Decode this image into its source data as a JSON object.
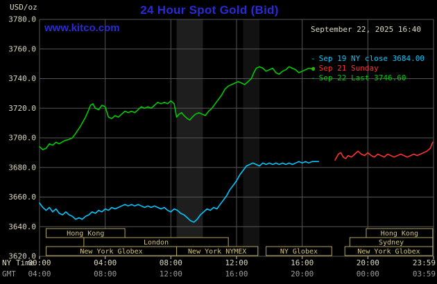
{
  "header": {
    "y_unit": "USD/oz",
    "title": "24 Hour Spot Gold (Bid)",
    "timestamp": "September 22, 2025 16:40",
    "website": "www.kitco.com"
  },
  "colors": {
    "background": "#000000",
    "title": "#2a2ad8",
    "text": "#ded9c2",
    "dim_text": "#9c9c9c",
    "grid": "#565656",
    "session_border": "#b3a55e",
    "session_text": "#d6c67c",
    "tick": "#cfcfcf"
  },
  "legend": {
    "items": [
      {
        "label": "Sep 19 NY close 3684.00",
        "color": "#00c8ff"
      },
      {
        "label": "Sep 21 Sunday",
        "color": "#ff3232"
      },
      {
        "label": "Sep 22 Last 3746.60",
        "color": "#00cc00"
      }
    ]
  },
  "axis": {
    "ny_time_label": "NY Time",
    "gmt_label": "GMT",
    "ny_ticks": [
      "00:00",
      "04:00",
      "08:00",
      "12:00",
      "16:00",
      "20:00",
      "23:59"
    ],
    "gmt_ticks": [
      "04:00",
      "08:00",
      "12:00",
      "16:00",
      "20:00",
      "00:00",
      "03:59"
    ]
  },
  "chart_data": {
    "type": "line",
    "title": "24 Hour Spot Gold (Bid)",
    "ylabel": "USD/oz",
    "ylim": [
      3620,
      3780
    ],
    "y_ticks": [
      3780,
      3760,
      3740,
      3720,
      3700,
      3680,
      3660,
      3640,
      3620
    ],
    "xlim_hours": [
      0,
      24
    ],
    "x_tick_hours": [
      0,
      4,
      8,
      12,
      16,
      20,
      24
    ],
    "grid": true,
    "legend_position": "top-right",
    "bands": [
      {
        "from": 8.35,
        "to": 9.95,
        "color": "#1e1e1e"
      },
      {
        "from": 12.4,
        "to": 13.4,
        "color": "#121212"
      }
    ],
    "sessions": [
      {
        "label": "Hong Kong",
        "row": 0,
        "from": 0.4,
        "to": 5.2
      },
      {
        "label": "Hong Kong",
        "row": 0,
        "from": 19.9,
        "to": 23.95
      },
      {
        "label": "London",
        "row": 1,
        "from": 2.7,
        "to": 11.5
      },
      {
        "label": "Sydney",
        "row": 1,
        "from": 18.9,
        "to": 23.95
      },
      {
        "label": "New York Globex",
        "row": 2,
        "from": 0.4,
        "to": 8.35
      },
      {
        "label": "New York NYMEX",
        "row": 2,
        "from": 8.35,
        "to": 13.3
      },
      {
        "label": "NY Globex",
        "row": 2,
        "from": 13.8,
        "to": 17.8
      },
      {
        "label": "New York Globex",
        "row": 2,
        "from": 18.6,
        "to": 23.95
      }
    ],
    "series": [
      {
        "name": "Sep 19 NY close",
        "color": "#00c8ff",
        "points": [
          [
            0,
            3656
          ],
          [
            0.2,
            3653
          ],
          [
            0.4,
            3651
          ],
          [
            0.6,
            3653
          ],
          [
            0.8,
            3650
          ],
          [
            1,
            3652
          ],
          [
            1.2,
            3649
          ],
          [
            1.4,
            3648
          ],
          [
            1.6,
            3650
          ],
          [
            1.8,
            3648
          ],
          [
            2,
            3647
          ],
          [
            2.2,
            3645
          ],
          [
            2.4,
            3646
          ],
          [
            2.6,
            3645
          ],
          [
            2.8,
            3647
          ],
          [
            3,
            3648
          ],
          [
            3.2,
            3650
          ],
          [
            3.4,
            3649
          ],
          [
            3.6,
            3651
          ],
          [
            3.8,
            3650
          ],
          [
            4,
            3652
          ],
          [
            4.2,
            3651
          ],
          [
            4.4,
            3653
          ],
          [
            4.6,
            3652
          ],
          [
            4.8,
            3653
          ],
          [
            5,
            3654
          ],
          [
            5.2,
            3655
          ],
          [
            5.4,
            3654
          ],
          [
            5.6,
            3655
          ],
          [
            5.8,
            3654
          ],
          [
            6,
            3655
          ],
          [
            6.2,
            3654
          ],
          [
            6.4,
            3653
          ],
          [
            6.6,
            3654
          ],
          [
            6.8,
            3653
          ],
          [
            7,
            3654
          ],
          [
            7.2,
            3653
          ],
          [
            7.4,
            3652
          ],
          [
            7.6,
            3653
          ],
          [
            7.8,
            3651
          ],
          [
            8,
            3650
          ],
          [
            8.2,
            3652
          ],
          [
            8.4,
            3651
          ],
          [
            8.6,
            3649
          ],
          [
            8.8,
            3648
          ],
          [
            9,
            3646
          ],
          [
            9.2,
            3644
          ],
          [
            9.4,
            3643
          ],
          [
            9.6,
            3645
          ],
          [
            9.8,
            3648
          ],
          [
            10,
            3650
          ],
          [
            10.2,
            3652
          ],
          [
            10.4,
            3651
          ],
          [
            10.6,
            3653
          ],
          [
            10.8,
            3652
          ],
          [
            11,
            3655
          ],
          [
            11.2,
            3658
          ],
          [
            11.4,
            3661
          ],
          [
            11.6,
            3665
          ],
          [
            11.8,
            3668
          ],
          [
            12,
            3671
          ],
          [
            12.2,
            3675
          ],
          [
            12.4,
            3678
          ],
          [
            12.6,
            3681
          ],
          [
            12.8,
            3682
          ],
          [
            13,
            3683
          ],
          [
            13.2,
            3682
          ],
          [
            13.4,
            3681
          ],
          [
            13.6,
            3683
          ],
          [
            13.8,
            3682
          ],
          [
            14,
            3683
          ],
          [
            14.2,
            3682
          ],
          [
            14.4,
            3683
          ],
          [
            14.6,
            3682
          ],
          [
            14.8,
            3683
          ],
          [
            15,
            3682
          ],
          [
            15.2,
            3683
          ],
          [
            15.4,
            3682
          ],
          [
            15.6,
            3683
          ],
          [
            15.8,
            3684
          ],
          [
            16,
            3683
          ],
          [
            16.2,
            3684
          ],
          [
            16.4,
            3683
          ],
          [
            16.6,
            3684
          ],
          [
            16.8,
            3684
          ],
          [
            17,
            3684
          ]
        ]
      },
      {
        "name": "Sep 21 Sunday",
        "color": "#ff3232",
        "points": [
          [
            18,
            3685
          ],
          [
            18.1,
            3687
          ],
          [
            18.2,
            3689
          ],
          [
            18.35,
            3690
          ],
          [
            18.5,
            3687
          ],
          [
            18.65,
            3686
          ],
          [
            18.8,
            3688
          ],
          [
            19,
            3687
          ],
          [
            19.2,
            3689
          ],
          [
            19.4,
            3691
          ],
          [
            19.6,
            3689
          ],
          [
            19.8,
            3688
          ],
          [
            20,
            3690
          ],
          [
            20.2,
            3688
          ],
          [
            20.4,
            3687
          ],
          [
            20.6,
            3689
          ],
          [
            20.8,
            3688
          ],
          [
            21,
            3687
          ],
          [
            21.2,
            3689
          ],
          [
            21.4,
            3688
          ],
          [
            21.6,
            3687
          ],
          [
            21.8,
            3688
          ],
          [
            22,
            3689
          ],
          [
            22.2,
            3688
          ],
          [
            22.4,
            3687
          ],
          [
            22.6,
            3688
          ],
          [
            22.8,
            3689
          ],
          [
            23,
            3688
          ],
          [
            23.2,
            3689
          ],
          [
            23.4,
            3690
          ],
          [
            23.6,
            3691
          ],
          [
            23.8,
            3693
          ],
          [
            23.95,
            3697
          ]
        ]
      },
      {
        "name": "Sep 22 Last",
        "color": "#00cc00",
        "last_marker": true,
        "points": [
          [
            0,
            3694
          ],
          [
            0.2,
            3692
          ],
          [
            0.4,
            3693
          ],
          [
            0.6,
            3696
          ],
          [
            0.8,
            3695
          ],
          [
            1,
            3697
          ],
          [
            1.2,
            3696
          ],
          [
            1.5,
            3698
          ],
          [
            1.8,
            3699
          ],
          [
            2,
            3700
          ],
          [
            2.2,
            3703
          ],
          [
            2.5,
            3708
          ],
          [
            2.8,
            3714
          ],
          [
            3,
            3719
          ],
          [
            3.1,
            3722
          ],
          [
            3.25,
            3723
          ],
          [
            3.4,
            3720
          ],
          [
            3.6,
            3719
          ],
          [
            3.8,
            3722
          ],
          [
            4,
            3721
          ],
          [
            4.2,
            3714
          ],
          [
            4.4,
            3713
          ],
          [
            4.6,
            3715
          ],
          [
            4.8,
            3714
          ],
          [
            5,
            3716
          ],
          [
            5.2,
            3718
          ],
          [
            5.4,
            3717
          ],
          [
            5.6,
            3718
          ],
          [
            5.8,
            3717
          ],
          [
            6,
            3719
          ],
          [
            6.2,
            3721
          ],
          [
            6.4,
            3720
          ],
          [
            6.6,
            3721
          ],
          [
            6.8,
            3720
          ],
          [
            7,
            3722
          ],
          [
            7.2,
            3724
          ],
          [
            7.4,
            3723
          ],
          [
            7.6,
            3724
          ],
          [
            7.8,
            3723
          ],
          [
            8,
            3725
          ],
          [
            8.2,
            3723
          ],
          [
            8.35,
            3714
          ],
          [
            8.5,
            3716
          ],
          [
            8.65,
            3717
          ],
          [
            8.8,
            3715
          ],
          [
            9,
            3713
          ],
          [
            9.15,
            3712
          ],
          [
            9.3,
            3714
          ],
          [
            9.5,
            3716
          ],
          [
            9.7,
            3717
          ],
          [
            9.9,
            3716
          ],
          [
            10.1,
            3715
          ],
          [
            10.3,
            3718
          ],
          [
            10.5,
            3720
          ],
          [
            10.7,
            3723
          ],
          [
            10.9,
            3726
          ],
          [
            11.1,
            3729
          ],
          [
            11.3,
            3733
          ],
          [
            11.5,
            3735
          ],
          [
            11.7,
            3736
          ],
          [
            11.9,
            3737
          ],
          [
            12.1,
            3738
          ],
          [
            12.3,
            3737
          ],
          [
            12.5,
            3736
          ],
          [
            12.7,
            3738
          ],
          [
            12.9,
            3740
          ],
          [
            13.05,
            3744
          ],
          [
            13.2,
            3747
          ],
          [
            13.4,
            3748
          ],
          [
            13.6,
            3747
          ],
          [
            13.8,
            3745
          ],
          [
            14,
            3746
          ],
          [
            14.2,
            3747
          ],
          [
            14.4,
            3744
          ],
          [
            14.6,
            3743
          ],
          [
            14.8,
            3745
          ],
          [
            15,
            3746
          ],
          [
            15.2,
            3748
          ],
          [
            15.4,
            3747
          ],
          [
            15.6,
            3746
          ],
          [
            15.8,
            3744
          ],
          [
            16,
            3745
          ],
          [
            16.2,
            3746
          ],
          [
            16.4,
            3747
          ],
          [
            16.67,
            3746.6
          ]
        ]
      }
    ]
  }
}
